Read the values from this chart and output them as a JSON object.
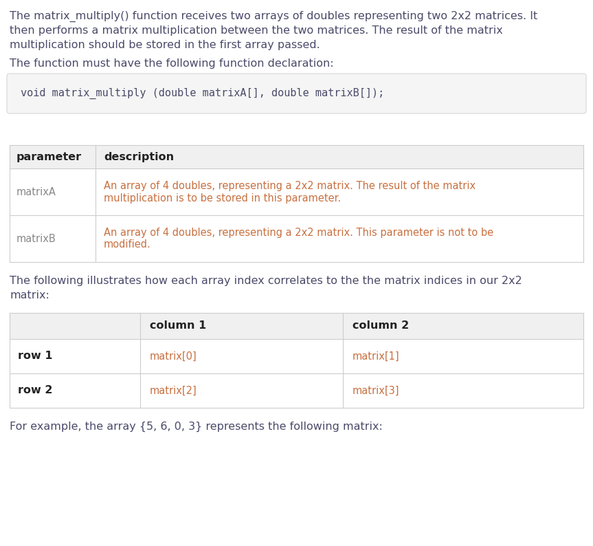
{
  "bg_color": "#ffffff",
  "body_text_color": "#4a4a6a",
  "code_bg": "#f5f5f5",
  "code_border": "#dddddd",
  "code_text_color": "#4a4a6a",
  "table_border_color": "#cccccc",
  "table_header_bg": "#f0f0f0",
  "table_desc_color": "#c87040",
  "table_param_color": "#888888",
  "header_bold_color": "#222222",
  "index_cell_color": "#c87040",
  "intro_text": "The matrix_multiply() function receives two arrays of doubles representing two 2x2 matrices. It\nthen performs a matrix multiplication between the two matrices. The result of the matrix\nmultiplication should be stored in the first array passed.",
  "decl_label": "The function must have the following function declaration:",
  "code_line": "void matrix_multiply (double matrixA[], double matrixB[]);",
  "param_table_headers": [
    "parameter",
    "description"
  ],
  "param_table_rows": [
    [
      "matrixA",
      "An array of 4 doubles, representing a 2x2 matrix. The result of the matrix\nmultiplication is to be stored in this parameter."
    ],
    [
      "matrixB",
      "An array of 4 doubles, representing a 2x2 matrix. This parameter is not to be\nmodified."
    ]
  ],
  "index_text": "The following illustrates how each array index correlates to the the matrix indices in our 2x2\nmatrix:",
  "index_table_headers": [
    "",
    "column 1",
    "column 2"
  ],
  "index_table_rows": [
    [
      "row 1",
      "matrix[0]",
      "matrix[1]"
    ],
    [
      "row 2",
      "matrix[2]",
      "matrix[3]"
    ]
  ],
  "example_text": "For example, the array {5, 6, 0, 3} represents the following matrix:"
}
